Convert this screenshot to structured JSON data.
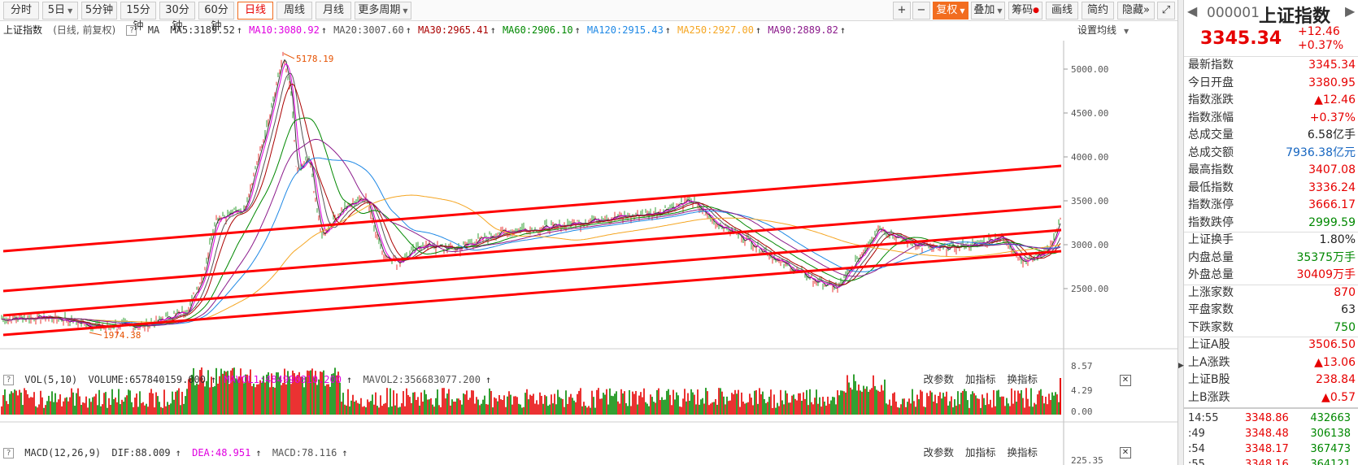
{
  "toolbar": {
    "tabs": [
      "分时",
      "5日",
      "5分钟",
      "15分钟",
      "30分钟",
      "60分钟",
      "日线",
      "周线",
      "月线",
      "更多周期"
    ],
    "active": "日线",
    "right": {
      "plus": "+",
      "minus": "−",
      "fq": "复权",
      "overlay": "叠加",
      "chip": "筹码",
      "draw": "画线",
      "simple": "简约",
      "hide": "隐藏",
      "expand": "»",
      "full": "⤢"
    }
  },
  "legend": {
    "name": "上证指数",
    "mode": "(日线, 前复权)",
    "q": "?",
    "ma": "MA",
    "items": [
      {
        "text": "MA5:3189.52",
        "color": "#333333"
      },
      {
        "text": "MA10:3080.92",
        "color": "#e000e0"
      },
      {
        "text": "MA20:3007.60",
        "color": "#555555"
      },
      {
        "text": "MA30:2965.41",
        "color": "#aa0000"
      },
      {
        "text": "MA60:2906.10",
        "color": "#008800"
      },
      {
        "text": "MA120:2915.43",
        "color": "#1e88e5"
      },
      {
        "text": "MA250:2927.00",
        "color": "#f5a623"
      },
      {
        "text": "MA90:2889.82",
        "color": "#8b1a8b"
      }
    ],
    "settings": "设置均线"
  },
  "price_axis": [
    "5000.00",
    "4500.00",
    "4000.00",
    "3500.00",
    "3000.00",
    "2500.00"
  ],
  "annotations": {
    "high": "5178.19",
    "low": "1974.38"
  },
  "vol": {
    "label": "VOL(5,10)",
    "volume": "VOLUME:657840159.000",
    "mavol1": "MAVOL1:484990810.200",
    "mavol2": "MAVOL2:356683077.200",
    "axis": [
      "8.57",
      "4.29",
      "0.00"
    ],
    "links": [
      "改参数",
      "加指标",
      "换指标"
    ]
  },
  "macd": {
    "label": "MACD(12,26,9)",
    "dif": "DIF:88.009",
    "dea": "DEA:48.951",
    "macd": "MACD:78.116",
    "axis": [
      "225.35"
    ],
    "links": [
      "改参数",
      "加指标",
      "换指标"
    ]
  },
  "quote": {
    "code": "000001",
    "name": "上证指数",
    "price": "3345.34",
    "change": "+12.46",
    "pct": "+0.37%",
    "rows": [
      {
        "k": "最新指数",
        "v": "3345.34",
        "c": "red"
      },
      {
        "k": "今日开盘",
        "v": "3380.95",
        "c": "red"
      },
      {
        "k": "指数涨跌",
        "v": "▲12.46",
        "c": "red"
      },
      {
        "k": "指数涨幅",
        "v": "+0.37%",
        "c": "red"
      },
      {
        "k": "总成交量",
        "v": "6.58亿手",
        "c": "dark"
      },
      {
        "k": "总成交额",
        "v": "7936.38亿元",
        "c": "blue"
      },
      {
        "k": "最高指数",
        "v": "3407.08",
        "c": "red"
      },
      {
        "k": "最低指数",
        "v": "3336.24",
        "c": "red"
      },
      {
        "k": "指数涨停",
        "v": "3666.17",
        "c": "red"
      },
      {
        "k": "指数跌停",
        "v": "2999.59",
        "c": "green"
      },
      {
        "k": "上证换手",
        "v": "1.80%",
        "c": "dark"
      },
      {
        "k": "内盘总量",
        "v": "35375万手",
        "c": "green"
      },
      {
        "k": "外盘总量",
        "v": "30409万手",
        "c": "red"
      },
      {
        "k": "上涨家数",
        "v": "870",
        "c": "red"
      },
      {
        "k": "平盘家数",
        "v": "63",
        "c": "dark"
      },
      {
        "k": "下跌家数",
        "v": "750",
        "c": "green"
      },
      {
        "k": "上证A股",
        "v": "3506.50",
        "c": "red"
      },
      {
        "k": "上A涨跌",
        "v": "▲13.06",
        "c": "red"
      },
      {
        "k": "上证B股",
        "v": "238.84",
        "c": "red"
      },
      {
        "k": "上B涨跌",
        "v": "▲0.57",
        "c": "red"
      }
    ],
    "ticks": [
      {
        "t": "14:55",
        "p": "3348.86",
        "v": "432663"
      },
      {
        "t": ":49",
        "p": "3348.48",
        "v": "306138"
      },
      {
        "t": ":54",
        "p": "3348.17",
        "v": "367473"
      },
      {
        "t": ":55",
        "p": "3348.16",
        "v": "364121"
      }
    ]
  }
}
